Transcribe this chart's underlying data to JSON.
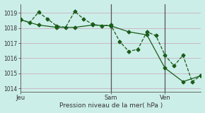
{
  "background_color": "#cceee8",
  "grid_color": "#c8b8c8",
  "line_color": "#1a5c1a",
  "vline_color": "#555555",
  "xlabel": "Pression niveau de la mer( hPa )",
  "x_tick_labels": [
    "Jeu",
    "Sam",
    "Ven"
  ],
  "x_tick_pos": [
    0,
    10,
    16
  ],
  "x_vline_pos": [
    10,
    16
  ],
  "xlim": [
    0,
    20
  ],
  "ylim": [
    1013.8,
    1019.6
  ],
  "yticks": [
    1014,
    1015,
    1016,
    1017,
    1018,
    1019
  ],
  "line1_x": [
    0,
    1,
    2,
    3,
    4,
    5,
    6,
    7,
    8,
    9,
    10,
    11,
    12,
    13,
    14,
    15,
    16,
    17,
    18,
    19,
    20
  ],
  "line1_y": [
    1018.6,
    1018.35,
    1019.05,
    1018.6,
    1018.15,
    1018.05,
    1019.1,
    1018.6,
    1018.25,
    1018.15,
    1018.2,
    1017.1,
    1016.45,
    1016.6,
    1017.75,
    1017.5,
    1016.2,
    1015.5,
    1016.2,
    1014.45,
    1014.85
  ],
  "line2_x": [
    0,
    2,
    4,
    6,
    8,
    10,
    12,
    14,
    16,
    18,
    20
  ],
  "line2_y": [
    1018.55,
    1018.2,
    1018.05,
    1018.05,
    1018.2,
    1018.15,
    1017.75,
    1017.55,
    1015.35,
    1014.45,
    1014.85
  ]
}
